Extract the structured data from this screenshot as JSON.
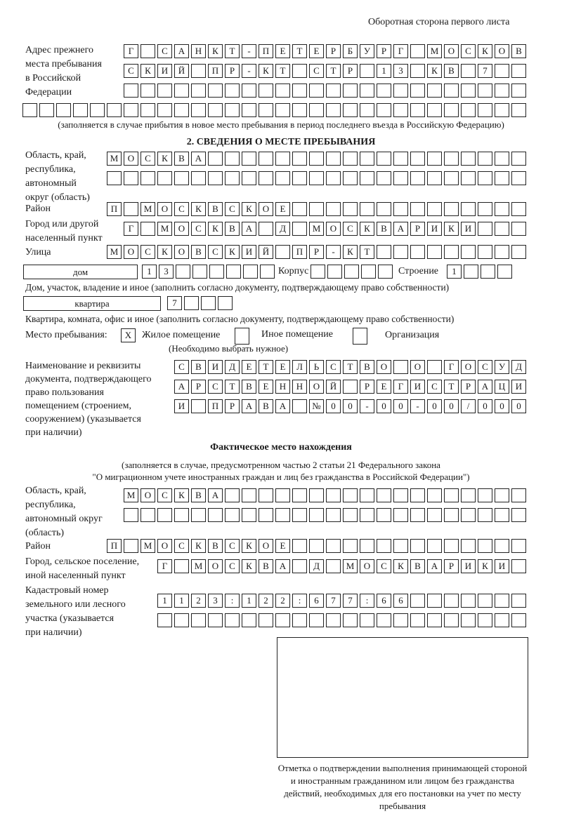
{
  "header": {
    "page_side": "Оборотная сторона первого листа"
  },
  "previous_address": {
    "label": [
      "Адрес прежнего",
      "места пребывания",
      "в Российской",
      "Федерации"
    ],
    "rows": [
      [
        "Г",
        "",
        "С",
        "А",
        "Н",
        "К",
        "Т",
        "-",
        "П",
        "Е",
        "Т",
        "Е",
        "Р",
        "Б",
        "У",
        "Р",
        "Г",
        "",
        "М",
        "О",
        "С",
        "К",
        "О",
        "В"
      ],
      [
        "С",
        "К",
        "И",
        "Й",
        "",
        "П",
        "Р",
        "-",
        "К",
        "Т",
        "",
        "С",
        "Т",
        "Р",
        "",
        "1",
        "3",
        "",
        "К",
        "В",
        "",
        "7",
        "",
        ""
      ],
      [
        "",
        "",
        "",
        "",
        "",
        "",
        "",
        "",
        "",
        "",
        "",
        "",
        "",
        "",
        "",
        "",
        "",
        "",
        "",
        "",
        "",
        "",
        "",
        ""
      ],
      [
        "",
        "",
        "",
        "",
        "",
        "",
        "",
        "",
        "",
        "",
        "",
        "",
        "",
        "",
        "",
        "",
        "",
        "",
        "",
        "",
        "",
        "",
        "",
        "",
        "",
        "",
        "",
        "",
        "",
        ""
      ]
    ],
    "note": "(заполняется в случае прибытия в новое место пребывания в период последнего въезда в Российскую Федерацию)"
  },
  "section2": {
    "title": "2. СВЕДЕНИЯ О МЕСТЕ ПРЕБЫВАНИЯ",
    "region_label": [
      "Область, край,",
      "республика,",
      "автономный",
      "округ (область)"
    ],
    "region_rows": [
      [
        "М",
        "О",
        "С",
        "К",
        "В",
        "А",
        "",
        "",
        "",
        "",
        "",
        "",
        "",
        "",
        "",
        "",
        "",
        "",
        "",
        "",
        "",
        "",
        "",
        "",
        ""
      ],
      [
        "",
        "",
        "",
        "",
        "",
        "",
        "",
        "",
        "",
        "",
        "",
        "",
        "",
        "",
        "",
        "",
        "",
        "",
        "",
        "",
        "",
        "",
        "",
        "",
        ""
      ]
    ],
    "district_label": "Район",
    "district": [
      "П",
      "",
      "М",
      "О",
      "С",
      "К",
      "В",
      "С",
      "К",
      "О",
      "Е",
      "",
      "",
      "",
      "",
      "",
      "",
      "",
      "",
      "",
      "",
      "",
      "",
      "",
      ""
    ],
    "city_label": [
      "Город или другой",
      "населенный пункт"
    ],
    "city": [
      "Г",
      "",
      "М",
      "О",
      "С",
      "К",
      "В",
      "А",
      "",
      "Д",
      "",
      "М",
      "О",
      "С",
      "К",
      "В",
      "А",
      "Р",
      "И",
      "К",
      "И",
      "",
      "",
      ""
    ],
    "street_label": "Улица",
    "street": [
      "М",
      "О",
      "С",
      "К",
      "О",
      "В",
      "С",
      "К",
      "И",
      "Й",
      "",
      "П",
      "Р",
      "-",
      "К",
      "Т",
      "",
      "",
      "",
      "",
      "",
      "",
      "",
      "",
      ""
    ],
    "house_type": "дом",
    "house": [
      "1",
      "3",
      "",
      "",
      "",
      "",
      "",
      ""
    ],
    "building_label": "Корпус",
    "building": [
      "",
      "",
      "",
      "",
      ""
    ],
    "structure_label": "Строение",
    "structure": [
      "1",
      "",
      "",
      ""
    ],
    "house_note": "Дом, участок, владение и иное (заполнить согласно документу, подтверждающему право собственности)",
    "flat_type": "квартира",
    "flat": [
      "7",
      "",
      "",
      ""
    ],
    "flat_note": "Квартира, комната, офис и иное (заполнить согласно документу, подтверждающему право собственности)",
    "stay_place_label": "Место пребывания:",
    "stay_options": [
      {
        "mark": "X",
        "label": "Жилое помещение",
        "checked": true
      },
      {
        "mark": "",
        "label": "Иное помещение",
        "checked": false
      },
      {
        "mark": "",
        "label": "Организация",
        "checked": false
      }
    ],
    "choose_note": "(Необходимо выбрать нужное)",
    "document_label": [
      "Наименование и реквизиты",
      "документа, подтверждающего",
      "право пользования",
      "помещением (строением,",
      "сооружением) (указывается",
      "при наличии)"
    ],
    "document_rows": [
      [
        "С",
        "В",
        "И",
        "Д",
        "Е",
        "Т",
        "Е",
        "Л",
        "Ь",
        "С",
        "Т",
        "В",
        "О",
        "",
        "О",
        "",
        "Г",
        "О",
        "С",
        "У",
        "Д"
      ],
      [
        "А",
        "Р",
        "С",
        "Т",
        "В",
        "Е",
        "Н",
        "Н",
        "О",
        "Й",
        "",
        "Р",
        "Е",
        "Г",
        "И",
        "С",
        "Т",
        "Р",
        "А",
        "Ц",
        "И"
      ],
      [
        "И",
        "",
        "П",
        "Р",
        "А",
        "В",
        "А",
        "",
        "№",
        "0",
        "0",
        "-",
        "0",
        "0",
        "-",
        "0",
        "0",
        "/",
        "0",
        "0",
        "0"
      ]
    ]
  },
  "actual": {
    "title": "Фактическое место нахождения",
    "note1": "(заполняется в случае, предусмотренном частью 2 статьи 21 Федерального закона",
    "note2": "\"О миграционном учете иностранных граждан и лиц без гражданства в Российской Федерации\")",
    "region_label": [
      "Область, край,",
      "республика,",
      "автономный округ",
      "(область)"
    ],
    "region_rows": [
      [
        "М",
        "О",
        "С",
        "К",
        "В",
        "А",
        "",
        "",
        "",
        "",
        "",
        "",
        "",
        "",
        "",
        "",
        "",
        "",
        "",
        "",
        "",
        "",
        "",
        ""
      ],
      [
        "",
        "",
        "",
        "",
        "",
        "",
        "",
        "",
        "",
        "",
        "",
        "",
        "",
        "",
        "",
        "",
        "",
        "",
        "",
        "",
        "",
        "",
        "",
        ""
      ]
    ],
    "district_label": "Район",
    "district": [
      "П",
      "",
      "М",
      "О",
      "С",
      "К",
      "В",
      "С",
      "К",
      "О",
      "Е",
      "",
      "",
      "",
      "",
      "",
      "",
      "",
      "",
      "",
      "",
      "",
      "",
      "",
      ""
    ],
    "city_label": [
      "Город, сельское поселение,",
      "иной населенный пункт"
    ],
    "city": [
      "Г",
      "",
      "М",
      "О",
      "С",
      "К",
      "В",
      "А",
      "",
      "Д",
      "",
      "М",
      "О",
      "С",
      "К",
      "В",
      "А",
      "Р",
      "И",
      "К",
      "И",
      ""
    ],
    "cadastral_label": [
      "Кадастровый номер",
      "земельного или лесного",
      "участка (указывается",
      "при наличии)"
    ],
    "cadastral_rows": [
      [
        "1",
        "1",
        "2",
        "3",
        ":",
        "1",
        "2",
        "2",
        ":",
        "6",
        "7",
        "7",
        ":",
        "6",
        "6",
        "",
        "",
        "",
        "",
        "",
        "",
        ""
      ],
      [
        "",
        "",
        "",
        "",
        "",
        "",
        "",
        "",
        "",
        "",
        "",
        "",
        "",
        "",
        "",
        "",
        "",
        "",
        "",
        "",
        "",
        ""
      ]
    ]
  },
  "confirmation": {
    "caption": "Отметка о подтверждении выполнения принимающей стороной и иностранным гражданином или лицом без гражданства действий, необходимых для его постановки на учет по месту пребывания"
  }
}
